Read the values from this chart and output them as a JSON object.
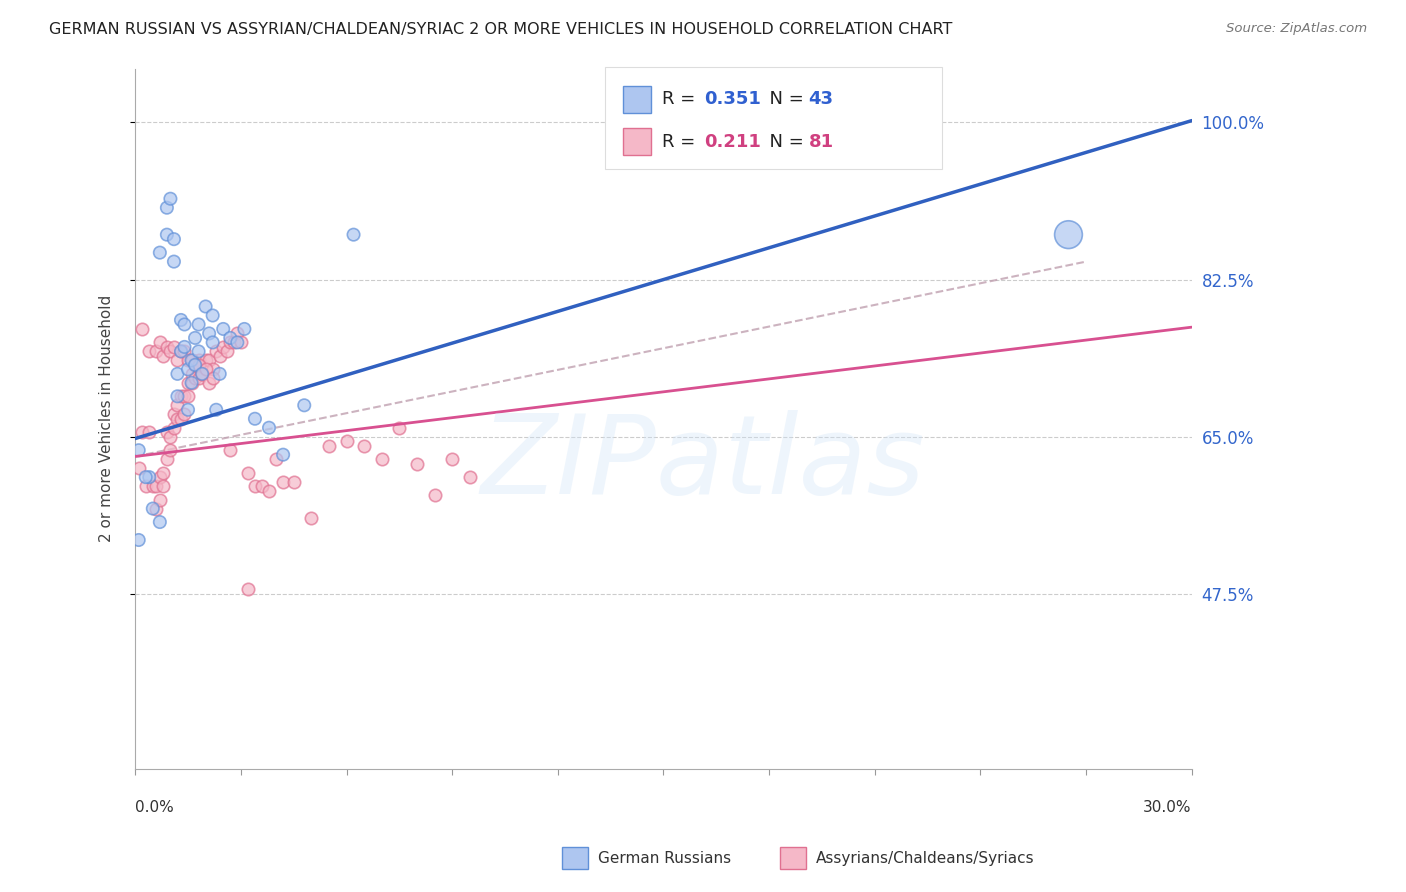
{
  "title": "GERMAN RUSSIAN VS ASSYRIAN/CHALDEAN/SYRIAC 2 OR MORE VEHICLES IN HOUSEHOLD CORRELATION CHART",
  "source": "Source: ZipAtlas.com",
  "ylabel": "2 or more Vehicles in Household",
  "xmin": 0.0,
  "xmax": 0.3,
  "ymin": 0.28,
  "ymax": 1.06,
  "ytick_labels": [
    "47.5%",
    "65.0%",
    "82.5%",
    "100.0%"
  ],
  "ytick_values": [
    0.475,
    0.65,
    0.825,
    1.0
  ],
  "xtick_values": [
    0.0,
    0.03,
    0.06,
    0.09,
    0.12,
    0.15,
    0.18,
    0.21,
    0.24,
    0.27,
    0.3
  ],
  "blue_face_color": "#aec6f0",
  "blue_edge_color": "#6090d8",
  "pink_face_color": "#f5b8c8",
  "pink_edge_color": "#e07090",
  "blue_line_color": "#3060c0",
  "pink_line_color": "#d85090",
  "dashed_line_color": "#c0a0b0",
  "legend_label1": "German Russians",
  "legend_label2": "Assyrians/Chaldeans/Syriacs",
  "blue_R": "0.351",
  "blue_N": "43",
  "pink_R": "0.211",
  "pink_N": "81",
  "r_n_blue_color": "#3060d0",
  "r_n_pink_color": "#d04080",
  "blue_line_y0": 0.648,
  "blue_line_y1": 1.002,
  "pink_line_y0": 0.628,
  "pink_line_y1": 0.772,
  "dashed_line_x1": 0.27,
  "dashed_line_y0": 0.628,
  "dashed_line_y1": 0.845,
  "blue_pts_x": [
    0.001,
    0.004,
    0.007,
    0.009,
    0.009,
    0.01,
    0.011,
    0.011,
    0.012,
    0.012,
    0.013,
    0.013,
    0.014,
    0.014,
    0.015,
    0.015,
    0.016,
    0.016,
    0.017,
    0.017,
    0.018,
    0.018,
    0.019,
    0.02,
    0.021,
    0.022,
    0.022,
    0.023,
    0.024,
    0.025,
    0.027,
    0.029,
    0.031,
    0.034,
    0.038,
    0.042,
    0.048,
    0.062,
    0.001,
    0.003,
    0.005,
    0.007,
    0.265
  ],
  "blue_pts_y": [
    0.535,
    0.605,
    0.855,
    0.875,
    0.905,
    0.915,
    0.845,
    0.87,
    0.72,
    0.695,
    0.745,
    0.78,
    0.75,
    0.775,
    0.725,
    0.68,
    0.735,
    0.71,
    0.73,
    0.76,
    0.745,
    0.775,
    0.72,
    0.795,
    0.765,
    0.755,
    0.785,
    0.68,
    0.72,
    0.77,
    0.76,
    0.755,
    0.77,
    0.67,
    0.66,
    0.63,
    0.685,
    0.875,
    0.635,
    0.605,
    0.57,
    0.555,
    0.875
  ],
  "blue_pts_s": [
    80,
    80,
    80,
    80,
    80,
    80,
    80,
    80,
    80,
    80,
    80,
    80,
    80,
    80,
    80,
    80,
    80,
    80,
    80,
    80,
    80,
    80,
    80,
    80,
    80,
    80,
    80,
    80,
    80,
    80,
    80,
    80,
    80,
    80,
    80,
    80,
    80,
    80,
    80,
    80,
    80,
    80,
    400
  ],
  "pink_pts_x": [
    0.001,
    0.002,
    0.003,
    0.004,
    0.005,
    0.006,
    0.006,
    0.007,
    0.007,
    0.008,
    0.008,
    0.009,
    0.009,
    0.01,
    0.01,
    0.011,
    0.011,
    0.012,
    0.012,
    0.013,
    0.013,
    0.014,
    0.014,
    0.015,
    0.015,
    0.016,
    0.016,
    0.017,
    0.017,
    0.018,
    0.018,
    0.019,
    0.02,
    0.021,
    0.022,
    0.023,
    0.024,
    0.025,
    0.026,
    0.027,
    0.028,
    0.029,
    0.03,
    0.032,
    0.034,
    0.036,
    0.038,
    0.04,
    0.042,
    0.045,
    0.05,
    0.055,
    0.06,
    0.065,
    0.07,
    0.075,
    0.08,
    0.085,
    0.09,
    0.095,
    0.002,
    0.004,
    0.006,
    0.007,
    0.008,
    0.009,
    0.01,
    0.011,
    0.012,
    0.013,
    0.014,
    0.015,
    0.016,
    0.017,
    0.018,
    0.019,
    0.02,
    0.021,
    0.022,
    0.027,
    0.032
  ],
  "pink_pts_y": [
    0.615,
    0.655,
    0.595,
    0.655,
    0.595,
    0.57,
    0.595,
    0.58,
    0.605,
    0.61,
    0.595,
    0.625,
    0.655,
    0.635,
    0.65,
    0.66,
    0.675,
    0.67,
    0.685,
    0.67,
    0.695,
    0.675,
    0.695,
    0.695,
    0.71,
    0.71,
    0.72,
    0.715,
    0.73,
    0.715,
    0.735,
    0.72,
    0.735,
    0.735,
    0.725,
    0.745,
    0.74,
    0.75,
    0.745,
    0.755,
    0.755,
    0.765,
    0.755,
    0.61,
    0.595,
    0.595,
    0.59,
    0.625,
    0.6,
    0.6,
    0.56,
    0.64,
    0.645,
    0.64,
    0.625,
    0.66,
    0.62,
    0.585,
    0.625,
    0.605,
    0.77,
    0.745,
    0.745,
    0.755,
    0.74,
    0.75,
    0.745,
    0.75,
    0.735,
    0.745,
    0.745,
    0.735,
    0.735,
    0.73,
    0.73,
    0.72,
    0.725,
    0.71,
    0.715,
    0.635,
    0.48
  ]
}
